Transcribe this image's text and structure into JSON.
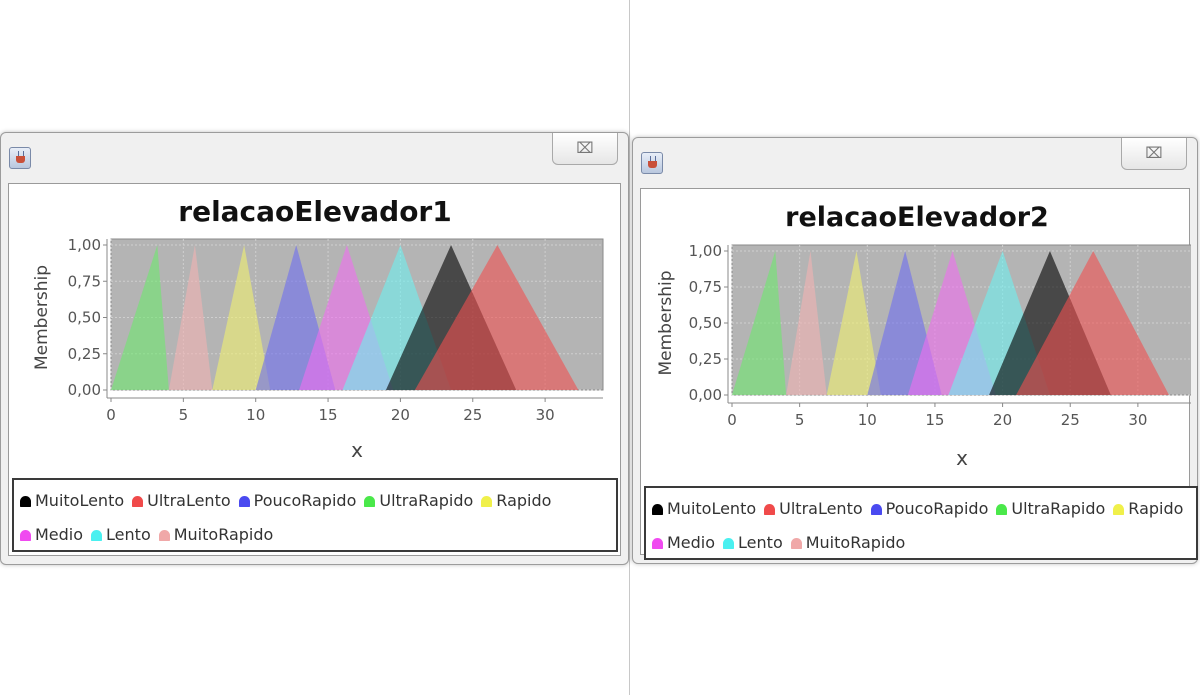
{
  "windows": [
    {
      "title": "relacaoElevador1",
      "close_glyph": "⌧",
      "title_icon": "java-cup-icon",
      "chart_data": {
        "type": "area",
        "title": "relacaoElevador1",
        "xlabel": "x",
        "ylabel": "Membership",
        "xlim": [
          0,
          34
        ],
        "ylim": [
          0,
          1
        ],
        "xticks": [
          "0",
          "5",
          "10",
          "15",
          "20",
          "25",
          "30"
        ],
        "yticks": [
          "0,00",
          "0,25",
          "0,50",
          "0,75",
          "1,00"
        ],
        "grid": true,
        "legend_position": "bottom",
        "series": [
          {
            "name": "UltraRapido",
            "color": "#6ee86e",
            "points": [
              [
                0,
                0
              ],
              [
                3.2,
                1
              ],
              [
                4,
                0
              ]
            ]
          },
          {
            "name": "MuitoRapido",
            "color": "#f2b3b3",
            "points": [
              [
                4,
                0
              ],
              [
                5.8,
                1
              ],
              [
                7,
                0
              ]
            ]
          },
          {
            "name": "Rapido",
            "color": "#f0f070",
            "points": [
              [
                7,
                0
              ],
              [
                9.2,
                1
              ],
              [
                11,
                0
              ]
            ]
          },
          {
            "name": "PoucoRapido",
            "color": "#6e6ef0",
            "points": [
              [
                10,
                0
              ],
              [
                12.8,
                1
              ],
              [
                15.5,
                0
              ]
            ]
          },
          {
            "name": "Medio",
            "color": "#f06ef0",
            "points": [
              [
                13,
                0
              ],
              [
                16.3,
                1
              ],
              [
                19.5,
                0
              ]
            ]
          },
          {
            "name": "Lento",
            "color": "#6ef0f0",
            "points": [
              [
                16,
                0
              ],
              [
                20,
                1
              ],
              [
                23.5,
                0
              ]
            ]
          },
          {
            "name": "MuitoLento",
            "color": "#000000",
            "points": [
              [
                19,
                0
              ],
              [
                23.5,
                1
              ],
              [
                28,
                0
              ]
            ]
          },
          {
            "name": "UltraLento",
            "color": "#f05050",
            "points": [
              [
                21,
                0
              ],
              [
                26.7,
                1
              ],
              [
                32.3,
                0
              ]
            ]
          }
        ]
      },
      "legend": [
        {
          "label": "MuitoLento",
          "color": "#000000"
        },
        {
          "label": "UltraLento",
          "color": "#f04a4a"
        },
        {
          "label": "PoucoRapido",
          "color": "#4a4af0"
        },
        {
          "label": "UltraRapido",
          "color": "#4ae84a"
        },
        {
          "label": "Rapido",
          "color": "#f0f04a"
        },
        {
          "label": "Medio",
          "color": "#f04af0"
        },
        {
          "label": "Lento",
          "color": "#4af0f0"
        },
        {
          "label": "MuitoRapido",
          "color": "#f0a8a8"
        }
      ]
    },
    {
      "title": "relacaoElevador2",
      "close_glyph": "⌧",
      "title_icon": "java-cup-icon",
      "chart_data": {
        "type": "area",
        "title": "relacaoElevador2",
        "xlabel": "x",
        "ylabel": "Membership",
        "xlim": [
          0,
          34
        ],
        "ylim": [
          0,
          1
        ],
        "xticks": [
          "0",
          "5",
          "10",
          "15",
          "20",
          "25",
          "30"
        ],
        "yticks": [
          "0,00",
          "0,25",
          "0,50",
          "0,75",
          "1,00"
        ],
        "grid": true,
        "legend_position": "bottom",
        "series": [
          {
            "name": "UltraRapido",
            "color": "#6ee86e",
            "points": [
              [
                0,
                0
              ],
              [
                3.2,
                1
              ],
              [
                4,
                0
              ]
            ]
          },
          {
            "name": "MuitoRapido",
            "color": "#f2b3b3",
            "points": [
              [
                4,
                0
              ],
              [
                5.8,
                1
              ],
              [
                7,
                0
              ]
            ]
          },
          {
            "name": "Rapido",
            "color": "#f0f070",
            "points": [
              [
                7,
                0
              ],
              [
                9.2,
                1
              ],
              [
                11,
                0
              ]
            ]
          },
          {
            "name": "PoucoRapido",
            "color": "#6e6ef0",
            "points": [
              [
                10,
                0
              ],
              [
                12.8,
                1
              ],
              [
                15.5,
                0
              ]
            ]
          },
          {
            "name": "Medio",
            "color": "#f06ef0",
            "points": [
              [
                13,
                0
              ],
              [
                16.3,
                1
              ],
              [
                19.5,
                0
              ]
            ]
          },
          {
            "name": "Lento",
            "color": "#6ef0f0",
            "points": [
              [
                16,
                0
              ],
              [
                20,
                1
              ],
              [
                23.5,
                0
              ]
            ]
          },
          {
            "name": "MuitoLento",
            "color": "#000000",
            "points": [
              [
                19,
                0
              ],
              [
                23.5,
                1
              ],
              [
                28,
                0
              ]
            ]
          },
          {
            "name": "UltraLento",
            "color": "#f05050",
            "points": [
              [
                21,
                0
              ],
              [
                26.7,
                1
              ],
              [
                32.3,
                0
              ]
            ]
          }
        ]
      },
      "legend": [
        {
          "label": "MuitoLento",
          "color": "#000000"
        },
        {
          "label": "UltraLento",
          "color": "#f04a4a"
        },
        {
          "label": "PoucoRapido",
          "color": "#4a4af0"
        },
        {
          "label": "UltraRapido",
          "color": "#4ae84a"
        },
        {
          "label": "Rapido",
          "color": "#f0f04a"
        },
        {
          "label": "Medio",
          "color": "#f04af0"
        },
        {
          "label": "Lento",
          "color": "#4af0f0"
        },
        {
          "label": "MuitoRapido",
          "color": "#f0a8a8"
        }
      ]
    }
  ]
}
